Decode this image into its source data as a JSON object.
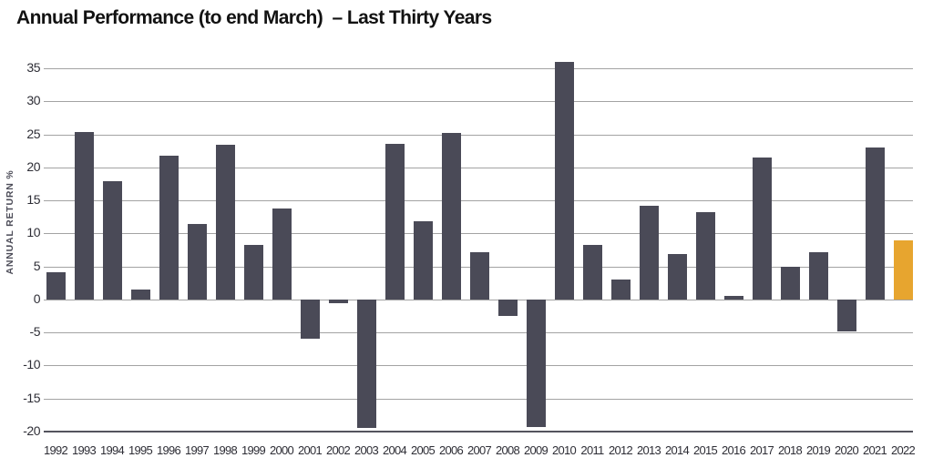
{
  "chart_data": {
    "type": "bar",
    "title": "Annual Performance (to end March)  – Last Thirty Years",
    "ylabel": "ANNUAL RETURN %",
    "xlabel": "",
    "categories": [
      "1992",
      "1993",
      "1994",
      "1995",
      "1996",
      "1997",
      "1998",
      "1999",
      "2000",
      "2001",
      "2002",
      "2003",
      "2004",
      "2005",
      "2006",
      "2007",
      "2008",
      "2009",
      "2010",
      "2011",
      "2012",
      "2013",
      "2014",
      "2015",
      "2016",
      "2017",
      "2018",
      "2019",
      "2020",
      "2021",
      "2022"
    ],
    "values": [
      4.1,
      25.3,
      17.9,
      1.5,
      21.7,
      11.4,
      23.4,
      8.2,
      13.8,
      -6.0,
      -0.6,
      -19.5,
      23.6,
      11.9,
      25.2,
      7.2,
      -2.5,
      -19.3,
      36.0,
      8.2,
      3.0,
      14.2,
      6.9,
      13.2,
      0.6,
      21.5,
      4.9,
      7.1,
      -4.9,
      23.0,
      9.0
    ],
    "ylim": [
      -20,
      35
    ],
    "ytick_step": 5,
    "grid": true,
    "legend_position": "none",
    "highlight_category": "2022",
    "colors": {
      "bar": "#4a4a57",
      "highlight_bar": "#e7a52f",
      "gridline": "#a3a3a3",
      "axis_bottom_line": "#54545e",
      "tick_text": "#2e2e36",
      "title_text": "#121212",
      "background": "#ffffff"
    }
  }
}
